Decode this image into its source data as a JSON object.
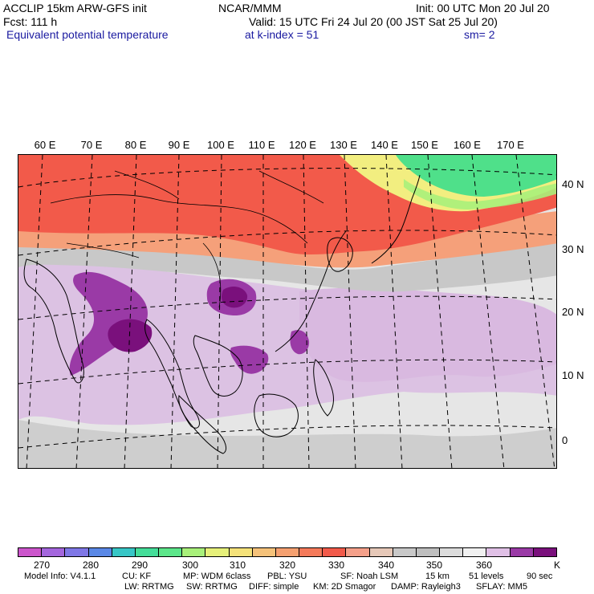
{
  "header": {
    "model": "ACCLIP 15km ARW-GFS init",
    "center": "NCAR/MMM",
    "init": "Init: 00 UTC Mon 20 Jul 20",
    "fcst": "Fcst:  111 h",
    "valid": "Valid: 15 UTC Fri 24 Jul 20 (00 JST Sat 25 Jul 20)",
    "field": "Equivalent potential temperature",
    "level": "at k-index =  51",
    "smooth": "sm= 2"
  },
  "map": {
    "lon_labels": [
      "60 E",
      "70 E",
      "80 E",
      "90 E",
      "100 E",
      "110 E",
      "120 E",
      "130 E",
      "140 E",
      "150 E",
      "160 E",
      "170 E"
    ],
    "lat_labels": [
      "40 N",
      "30 N",
      "20 N",
      "10 N",
      "0"
    ],
    "colors": {
      "north_red": "#f25a4a",
      "warm_salmon": "#f5a07a",
      "green": "#4fe08a",
      "yellow": "#f2ee80",
      "gray": "#c8c8c8",
      "light_gray": "#e6e6e6",
      "lilac": "#d9b9e0",
      "purple": "#9a3aa6",
      "dark_purple": "#7a107c",
      "land_outline": "#000000"
    }
  },
  "colorbar": {
    "colors": [
      "#cc55cc",
      "#a466dd",
      "#7f77e6",
      "#5a88e6",
      "#37c6c6",
      "#44dd99",
      "#5ce68a",
      "#a8f07a",
      "#e6f07a",
      "#f5e27a",
      "#f5c27a",
      "#f5a070",
      "#f57a5a",
      "#f25a4a",
      "#f5a08a",
      "#e6c8b8",
      "#c8c8c8",
      "#bebebe",
      "#dcdcdc",
      "#f0f0f0",
      "#e0c0e6",
      "#9a3aa6",
      "#7a107c"
    ],
    "labels": [
      "270",
      "280",
      "290",
      "300",
      "310",
      "320",
      "330",
      "340",
      "350",
      "360"
    ],
    "unit": "K"
  },
  "footer": {
    "line1": [
      "Model Info: V4.1.1",
      "CU: KF",
      "MP: WDM 6class",
      "PBL: YSU",
      "SF: Noah LSM",
      "15 km",
      "51 levels",
      "90 sec"
    ],
    "line2": [
      "LW: RRTMG",
      "SW: RRTMG",
      "DIFF: simple",
      "KM: 2D Smagor",
      "DAMP: Rayleigh3",
      "SFLAY: MM5"
    ]
  }
}
